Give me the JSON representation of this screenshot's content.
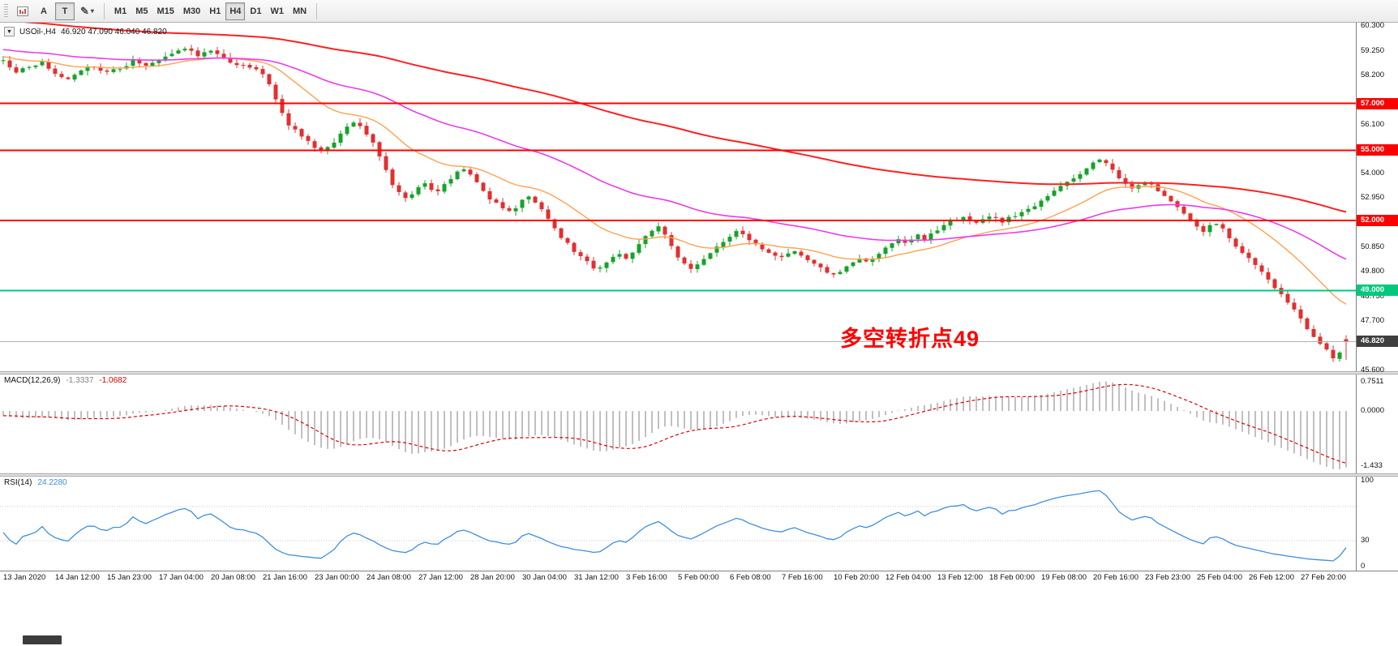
{
  "toolbar": {
    "button_a": "A",
    "button_t": "T",
    "icons": {
      "dropdown": "▼",
      "pencil": "✎",
      "caret": "▾"
    },
    "timeframes": [
      "M1",
      "M5",
      "M15",
      "M30",
      "H1",
      "H4",
      "D1",
      "W1",
      "MN"
    ],
    "active_timeframe": "H4"
  },
  "main_chart": {
    "symbol_label": "USOil-,H4",
    "ohlc_text": "46.920 47.090 46.040 46.820",
    "annotation": {
      "text": "多空转折点49",
      "color": "#ff0000"
    }
  },
  "colors": {
    "bull": "#16a329",
    "bear": "#e03030",
    "ma_fast": "#ffa14f",
    "ma_med": "#ea3cea",
    "ma_slow": "#ff2020",
    "hline_red": "#ff0000",
    "hline_green": "#00c97e",
    "bid_line": "#b0b0b0",
    "current_tag": "#3f3f3f",
    "macd_hist": "#c0c0c0",
    "macd_signal": "#e00000",
    "rsi_line": "#3e8ede"
  },
  "chart_data": {
    "type": "candlestick",
    "symbol": "USOil-",
    "timeframe": "H4",
    "bars": 208,
    "y_axis": {
      "min": 45.6,
      "max": 60.3,
      "tick_step": 1.05,
      "ticks": [
        60.3,
        59.25,
        58.2,
        57.15,
        56.1,
        55.05,
        54.0,
        52.95,
        51.9,
        50.85,
        49.8,
        48.75,
        47.7,
        46.65,
        45.6
      ]
    },
    "last_ohlc": {
      "open": 46.92,
      "high": 47.09,
      "low": 46.04,
      "close": 46.82
    },
    "levels": [
      {
        "price": 57.0,
        "label": "57.000",
        "color": "#ff0000"
      },
      {
        "price": 55.0,
        "label": "55.000",
        "color": "#ff0000"
      },
      {
        "price": 52.0,
        "label": "52.000",
        "color": "#ff0000"
      },
      {
        "price": 49.0,
        "label": "49.000",
        "color": "#00c97e"
      }
    ],
    "current_price": {
      "price": 46.82,
      "label": "46.820",
      "color": "#3f3f3f"
    },
    "moving_averages": [
      {
        "name": "fast",
        "color": "#ffa14f"
      },
      {
        "name": "medium",
        "color": "#ea3cea"
      },
      {
        "name": "slow",
        "color": "#ff2020"
      }
    ],
    "price_anchors": [
      [
        0,
        58.85
      ],
      [
        2,
        58.35
      ],
      [
        4,
        58.55
      ],
      [
        6,
        58.75
      ],
      [
        8,
        58.25
      ],
      [
        10,
        58.1
      ],
      [
        12,
        58.45
      ],
      [
        14,
        58.6
      ],
      [
        16,
        58.3
      ],
      [
        18,
        58.5
      ],
      [
        20,
        58.8
      ],
      [
        22,
        58.65
      ],
      [
        24,
        58.9
      ],
      [
        26,
        59.15
      ],
      [
        28,
        59.35
      ],
      [
        30,
        59.05
      ],
      [
        32,
        59.25
      ],
      [
        34,
        58.9
      ],
      [
        36,
        58.65
      ],
      [
        38,
        58.55
      ],
      [
        40,
        58.3
      ],
      [
        41,
        57.8
      ],
      [
        42,
        57.2
      ],
      [
        43,
        56.6
      ],
      [
        44,
        56.1
      ],
      [
        45,
        55.85
      ],
      [
        46,
        55.6
      ],
      [
        47,
        55.4
      ],
      [
        48,
        55.15
      ],
      [
        49,
        54.9
      ],
      [
        50,
        55.1
      ],
      [
        51,
        55.35
      ],
      [
        52,
        55.7
      ],
      [
        53,
        55.95
      ],
      [
        54,
        56.2
      ],
      [
        55,
        56.05
      ],
      [
        56,
        55.7
      ],
      [
        57,
        55.3
      ],
      [
        58,
        54.7
      ],
      [
        59,
        54.1
      ],
      [
        60,
        53.55
      ],
      [
        61,
        53.2
      ],
      [
        62,
        52.95
      ],
      [
        63,
        53.15
      ],
      [
        64,
        53.45
      ],
      [
        65,
        53.6
      ],
      [
        66,
        53.35
      ],
      [
        67,
        53.2
      ],
      [
        68,
        53.5
      ],
      [
        69,
        53.8
      ],
      [
        70,
        54.05
      ],
      [
        71,
        54.2
      ],
      [
        72,
        53.95
      ],
      [
        73,
        53.6
      ],
      [
        74,
        53.2
      ],
      [
        75,
        52.95
      ],
      [
        76,
        52.7
      ],
      [
        77,
        52.55
      ],
      [
        78,
        52.4
      ],
      [
        79,
        52.55
      ],
      [
        80,
        52.85
      ],
      [
        81,
        53.0
      ],
      [
        82,
        52.75
      ],
      [
        83,
        52.45
      ],
      [
        84,
        52.1
      ],
      [
        85,
        51.7
      ],
      [
        86,
        51.3
      ],
      [
        87,
        51.0
      ],
      [
        88,
        50.7
      ],
      [
        89,
        50.45
      ],
      [
        90,
        50.2
      ],
      [
        91,
        50.0
      ],
      [
        92,
        49.95
      ],
      [
        93,
        50.15
      ],
      [
        94,
        50.4
      ],
      [
        95,
        50.55
      ],
      [
        96,
        50.35
      ],
      [
        97,
        50.6
      ],
      [
        98,
        50.95
      ],
      [
        99,
        51.3
      ],
      [
        100,
        51.6
      ],
      [
        101,
        51.75
      ],
      [
        102,
        51.4
      ],
      [
        103,
        50.9
      ],
      [
        104,
        50.45
      ],
      [
        105,
        50.1
      ],
      [
        106,
        49.95
      ],
      [
        107,
        50.1
      ],
      [
        108,
        50.35
      ],
      [
        109,
        50.6
      ],
      [
        110,
        50.85
      ],
      [
        111,
        51.05
      ],
      [
        112,
        51.3
      ],
      [
        113,
        51.5
      ],
      [
        114,
        51.4
      ],
      [
        115,
        51.2
      ],
      [
        116,
        51.0
      ],
      [
        117,
        50.8
      ],
      [
        118,
        50.65
      ],
      [
        119,
        50.5
      ],
      [
        120,
        50.4
      ],
      [
        121,
        50.55
      ],
      [
        122,
        50.65
      ],
      [
        123,
        50.45
      ],
      [
        124,
        50.25
      ],
      [
        125,
        50.1
      ],
      [
        126,
        49.95
      ],
      [
        127,
        49.8
      ],
      [
        128,
        49.7
      ],
      [
        129,
        49.85
      ],
      [
        130,
        50.05
      ],
      [
        131,
        50.2
      ],
      [
        132,
        50.35
      ],
      [
        133,
        50.25
      ],
      [
        134,
        50.4
      ],
      [
        135,
        50.6
      ],
      [
        136,
        50.8
      ],
      [
        137,
        51.0
      ],
      [
        138,
        51.15
      ],
      [
        139,
        51.05
      ],
      [
        140,
        51.2
      ],
      [
        141,
        51.35
      ],
      [
        142,
        51.2
      ],
      [
        143,
        51.4
      ],
      [
        144,
        51.6
      ],
      [
        145,
        51.8
      ],
      [
        146,
        51.95
      ],
      [
        147,
        52.05
      ],
      [
        148,
        52.15
      ],
      [
        149,
        52.0
      ],
      [
        150,
        51.9
      ],
      [
        151,
        52.05
      ],
      [
        152,
        52.15
      ],
      [
        153,
        52.05
      ],
      [
        154,
        51.95
      ],
      [
        155,
        52.1
      ],
      [
        156,
        52.2
      ],
      [
        157,
        52.3
      ],
      [
        158,
        52.45
      ],
      [
        159,
        52.6
      ],
      [
        160,
        52.8
      ],
      [
        161,
        53.0
      ],
      [
        162,
        53.25
      ],
      [
        163,
        53.45
      ],
      [
        164,
        53.6
      ],
      [
        165,
        53.8
      ],
      [
        166,
        54.0
      ],
      [
        167,
        54.2
      ],
      [
        168,
        54.45
      ],
      [
        169,
        54.6
      ],
      [
        170,
        54.4
      ],
      [
        171,
        54.15
      ],
      [
        172,
        53.8
      ],
      [
        173,
        53.55
      ],
      [
        174,
        53.35
      ],
      [
        175,
        53.5
      ],
      [
        176,
        53.65
      ],
      [
        177,
        53.5
      ],
      [
        178,
        53.3
      ],
      [
        179,
        53.1
      ],
      [
        180,
        52.85
      ],
      [
        181,
        52.6
      ],
      [
        182,
        52.3
      ],
      [
        183,
        52.0
      ],
      [
        184,
        51.75
      ],
      [
        185,
        51.55
      ],
      [
        186,
        51.75
      ],
      [
        187,
        51.9
      ],
      [
        188,
        51.6
      ],
      [
        189,
        51.25
      ],
      [
        190,
        50.9
      ],
      [
        191,
        50.6
      ],
      [
        192,
        50.35
      ],
      [
        193,
        50.1
      ],
      [
        194,
        49.8
      ],
      [
        195,
        49.5
      ],
      [
        196,
        49.15
      ],
      [
        197,
        48.8
      ],
      [
        198,
        48.45
      ],
      [
        199,
        48.15
      ],
      [
        200,
        47.8
      ],
      [
        201,
        47.4
      ],
      [
        202,
        47.0
      ],
      [
        203,
        46.7
      ],
      [
        204,
        46.45
      ],
      [
        205,
        46.05
      ],
      [
        206,
        46.35
      ],
      [
        207,
        46.82
      ]
    ],
    "x_labels": [
      "13 Jan 2020",
      "14 Jan 12:00",
      "15 Jan 23:00",
      "17 Jan 04:00",
      "20 Jan 08:00",
      "21 Jan 16:00",
      "23 Jan 00:00",
      "24 Jan 08:00",
      "27 Jan 12:00",
      "28 Jan 20:00",
      "30 Jan 04:00",
      "31 Jan 12:00",
      "3 Feb 16:00",
      "5 Feb 00:00",
      "6 Feb 08:00",
      "7 Feb 16:00",
      "10 Feb 20:00",
      "12 Feb 04:00",
      "13 Feb 12:00",
      "18 Feb 00:00",
      "19 Feb 08:00",
      "20 Feb 16:00",
      "23 Feb 23:00",
      "25 Feb 04:00",
      "26 Feb 12:00",
      "27 Feb 20:00"
    ],
    "indicators": [
      {
        "type": "macd",
        "params": "12,26,9",
        "values": [
          -1.3337,
          -1.0682
        ],
        "scale": [
          0.7511,
          0.0,
          -1.433
        ]
      },
      {
        "type": "rsi",
        "params": "14",
        "value": 24.228,
        "levels": [
          70,
          30
        ],
        "scale": [
          100,
          30,
          0
        ]
      }
    ]
  },
  "macd_panel": {
    "title": "MACD(12,26,9)",
    "value_main": "-1.3337",
    "value_signal": "-1.0682",
    "scale_labels": [
      {
        "text": "0.7511",
        "value": 0.7511
      },
      {
        "text": "0.0000",
        "value": 0
      },
      {
        "text": "-1.433",
        "value": -1.433
      }
    ]
  },
  "rsi_panel": {
    "title": "RSI(14)",
    "value": "24.2280",
    "levels": [
      70,
      30
    ],
    "scale_labels": [
      {
        "text": "100",
        "value": 100
      },
      {
        "text": "30",
        "value": 30
      },
      {
        "text": "0",
        "value": 0
      }
    ]
  },
  "time_axis": {
    "labels": [
      "13 Jan 2020",
      "14 Jan 12:00",
      "15 Jan 23:00",
      "17 Jan 04:00",
      "20 Jan 08:00",
      "21 Jan 16:00",
      "23 Jan 00:00",
      "24 Jan 08:00",
      "27 Jan 12:00",
      "28 Jan 20:00",
      "30 Jan 04:00",
      "31 Jan 12:00",
      "3 Feb 16:00",
      "5 Feb 00:00",
      "6 Feb 08:00",
      "7 Feb 16:00",
      "10 Feb 20:00",
      "12 Feb 04:00",
      "13 Feb 12:00",
      "18 Feb 00:00",
      "19 Feb 08:00",
      "20 Feb 16:00",
      "23 Feb 23:00",
      "25 Feb 04:00",
      "26 Feb 12:00",
      "27 Feb 20:00"
    ]
  }
}
